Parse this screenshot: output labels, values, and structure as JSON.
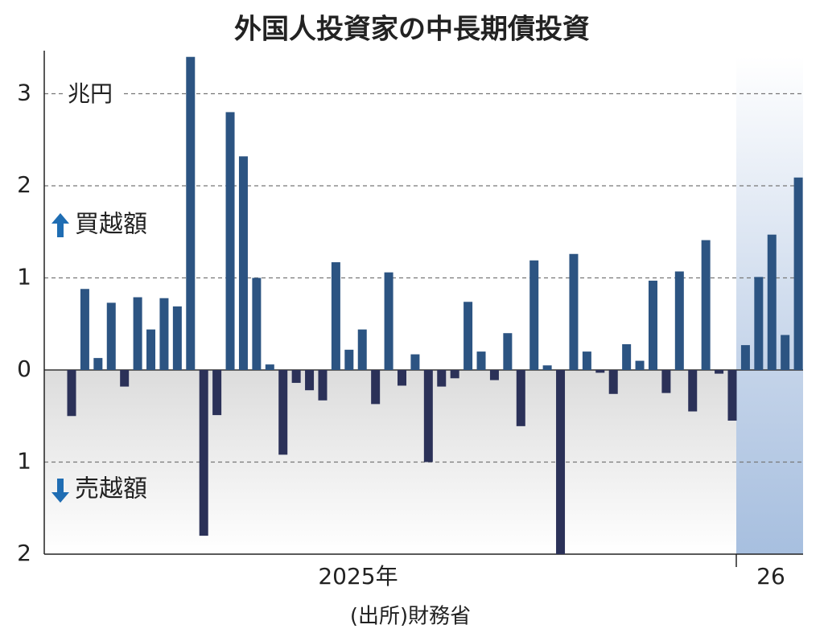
{
  "chart_data": {
    "type": "bar",
    "title": "外国人投資家の中長期債投資",
    "unit_label": "兆円",
    "buy_label": "買越額",
    "sell_label": "売越額",
    "source": "(出所)財務省",
    "period_labels": [
      "2025年",
      "26"
    ],
    "values": [
      -0.5,
      0.88,
      0.13,
      0.73,
      -0.18,
      0.79,
      0.44,
      0.78,
      0.69,
      3.4,
      -1.8,
      -0.49,
      2.8,
      2.32,
      1.0,
      0.06,
      -0.92,
      -0.14,
      -0.22,
      -0.33,
      1.17,
      0.22,
      0.44,
      -0.37,
      1.06,
      -0.17,
      0.17,
      -1.0,
      -0.18,
      -0.09,
      0.74,
      0.2,
      -0.11,
      0.4,
      -0.61,
      1.19,
      0.05,
      -2.0,
      1.26,
      0.2,
      -0.03,
      -0.26,
      0.28,
      0.1,
      0.97,
      -0.25,
      1.07,
      -0.45,
      1.41,
      -0.04,
      -0.55,
      0.27,
      1.01,
      1.47,
      0.38,
      2.09
    ],
    "color": "#2c5482",
    "negative_color": "#2b3158",
    "ylim": [
      -2,
      3.45
    ],
    "yticks": [
      {
        "value": -2,
        "label": "2"
      },
      {
        "value": -1,
        "label": "1"
      },
      0,
      1,
      2,
      3
    ],
    "grid": true
  }
}
